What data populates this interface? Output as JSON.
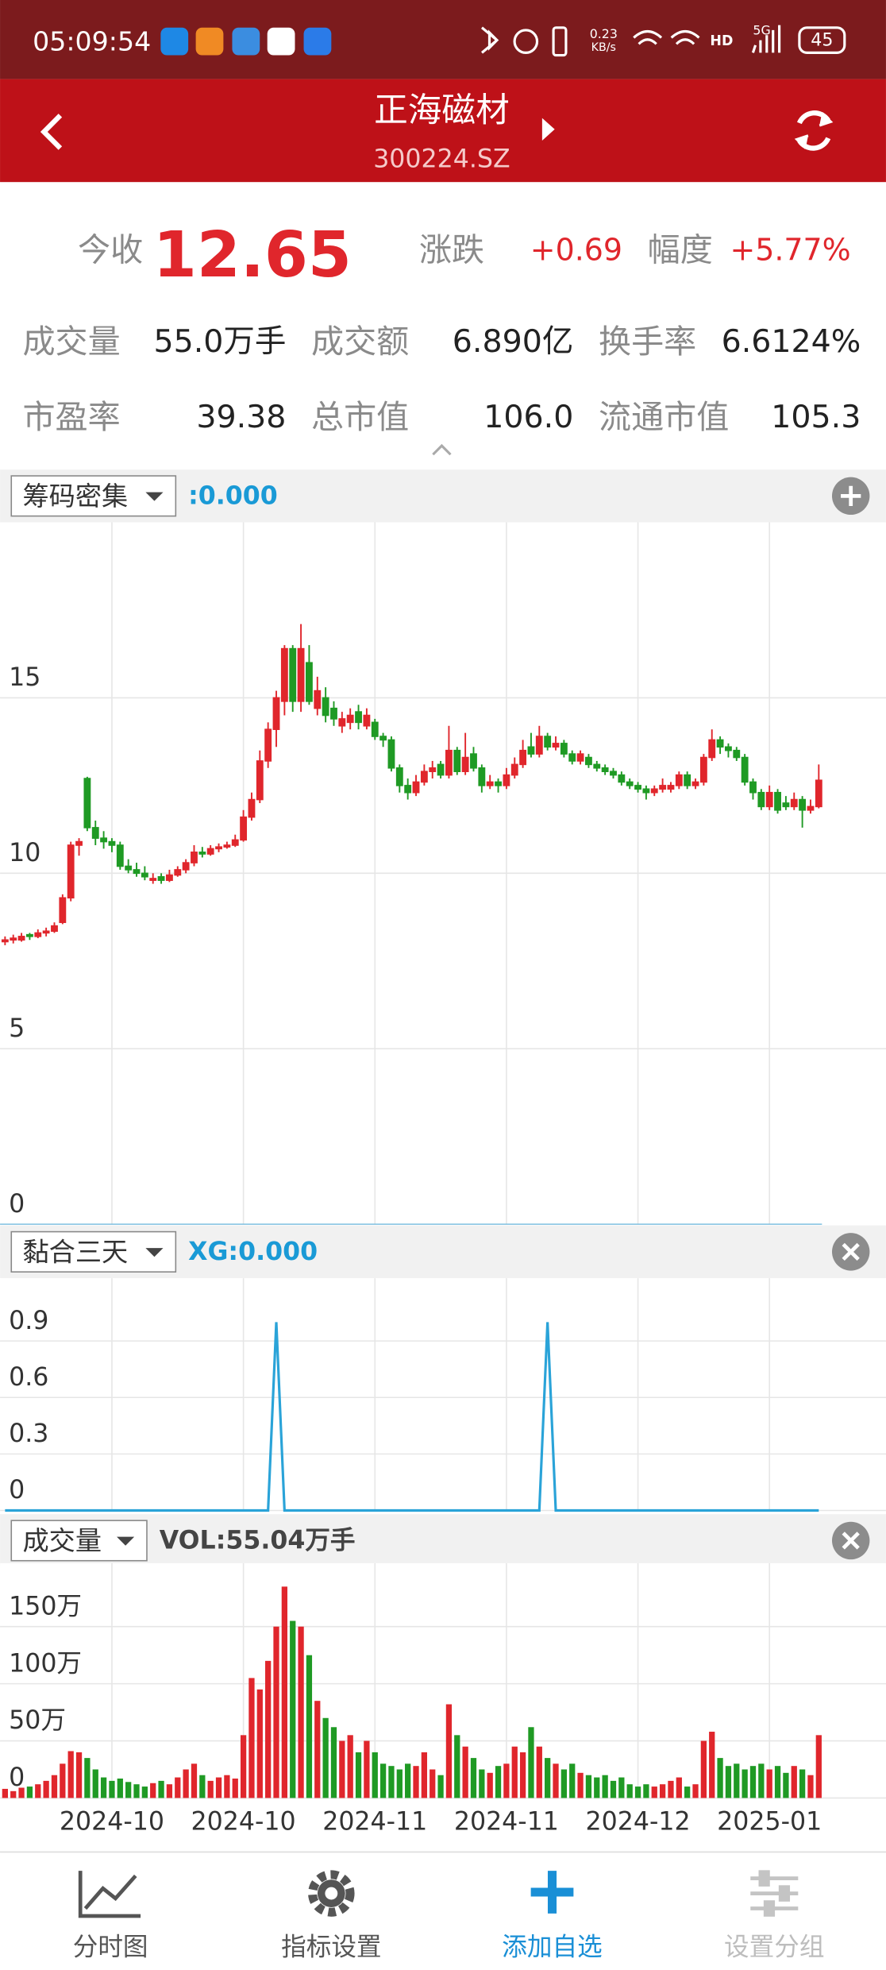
{
  "status_bar": {
    "time": "05:09:54",
    "net_speed": "0.23",
    "net_unit": "KB/s",
    "hd": "HD",
    "signal": "5G",
    "battery": "45"
  },
  "header": {
    "title": "正海磁材",
    "code": "300224.SZ"
  },
  "quote": {
    "close_label": "今收",
    "close": "12.65",
    "change_label": "涨跌",
    "change": "+0.69",
    "pct_label": "幅度",
    "pct": "+5.77%",
    "stats": [
      [
        "成交量",
        "55.0万手"
      ],
      [
        "成交额",
        "6.890亿"
      ],
      [
        "换手率",
        "6.6124%"
      ],
      [
        "市盈率",
        "39.38"
      ],
      [
        "总市值",
        "106.0"
      ],
      [
        "流通市值",
        "105.3"
      ]
    ]
  },
  "panels": [
    {
      "selector": "筹码密集",
      "readout": ":0.000"
    },
    {
      "selector": "黏合三天",
      "readout": "XG:0.000"
    },
    {
      "selector": "成交量",
      "readout": "VOL:55.04万手"
    }
  ],
  "chart_data": [
    {
      "type": "candlestick",
      "ylim": [
        0,
        20
      ],
      "yticks": [
        0,
        5,
        10,
        15
      ],
      "grid": true,
      "up_color": "#e0262c",
      "down_color": "#1f9a24",
      "ohlc": [
        [
          8.05,
          8.2,
          7.95,
          8.1
        ],
        [
          8.1,
          8.25,
          8.0,
          8.15
        ],
        [
          8.1,
          8.3,
          8.05,
          8.2
        ],
        [
          8.25,
          8.3,
          8.1,
          8.2
        ],
        [
          8.2,
          8.4,
          8.15,
          8.3
        ],
        [
          8.3,
          8.45,
          8.2,
          8.35
        ],
        [
          8.35,
          8.6,
          8.3,
          8.5
        ],
        [
          8.6,
          9.4,
          8.55,
          9.3
        ],
        [
          9.3,
          10.9,
          9.2,
          10.8
        ],
        [
          10.8,
          11.0,
          10.5,
          10.9
        ],
        [
          12.7,
          12.75,
          11.2,
          11.3
        ],
        [
          11.3,
          11.5,
          10.8,
          11.0
        ],
        [
          11.0,
          11.2,
          10.7,
          10.9
        ],
        [
          10.9,
          11.0,
          10.6,
          10.8
        ],
        [
          10.8,
          10.9,
          10.1,
          10.2
        ],
        [
          10.2,
          10.4,
          10.0,
          10.1
        ],
        [
          10.1,
          10.3,
          9.9,
          10.0
        ],
        [
          10.0,
          10.2,
          9.8,
          9.9
        ],
        [
          9.8,
          10.0,
          9.7,
          9.85
        ],
        [
          9.9,
          10.0,
          9.7,
          9.8
        ],
        [
          9.8,
          10.1,
          9.75,
          9.95
        ],
        [
          9.95,
          10.2,
          9.9,
          10.1
        ],
        [
          10.1,
          10.4,
          10.0,
          10.3
        ],
        [
          10.3,
          10.8,
          10.2,
          10.6
        ],
        [
          10.6,
          10.75,
          10.45,
          10.55
        ],
        [
          10.55,
          10.8,
          10.5,
          10.7
        ],
        [
          10.7,
          10.85,
          10.6,
          10.75
        ],
        [
          10.75,
          10.9,
          10.7,
          10.8
        ],
        [
          10.8,
          11.1,
          10.75,
          10.95
        ],
        [
          10.95,
          11.8,
          10.9,
          11.6
        ],
        [
          11.6,
          12.3,
          11.5,
          12.1
        ],
        [
          12.1,
          13.5,
          12.0,
          13.2
        ],
        [
          13.2,
          14.3,
          13.0,
          14.1
        ],
        [
          14.1,
          15.2,
          13.6,
          15.0
        ],
        [
          14.9,
          16.5,
          14.5,
          16.4
        ],
        [
          16.4,
          16.5,
          14.6,
          14.9
        ],
        [
          14.9,
          17.1,
          14.6,
          16.4
        ],
        [
          16.0,
          16.5,
          14.8,
          14.9
        ],
        [
          14.7,
          15.6,
          14.5,
          15.2
        ],
        [
          15.0,
          15.3,
          14.3,
          14.5
        ],
        [
          14.7,
          14.9,
          14.2,
          14.4
        ],
        [
          14.2,
          14.6,
          14.0,
          14.4
        ],
        [
          14.3,
          14.7,
          14.1,
          14.5
        ],
        [
          14.6,
          14.8,
          14.1,
          14.3
        ],
        [
          14.2,
          14.7,
          14.1,
          14.5
        ],
        [
          14.3,
          14.4,
          13.8,
          13.9
        ],
        [
          13.9,
          14.0,
          13.6,
          13.8
        ],
        [
          13.8,
          13.9,
          12.9,
          13.0
        ],
        [
          13.0,
          13.1,
          12.3,
          12.5
        ],
        [
          12.5,
          12.7,
          12.1,
          12.3
        ],
        [
          12.3,
          12.8,
          12.2,
          12.6
        ],
        [
          12.6,
          13.1,
          12.5,
          12.9
        ],
        [
          12.9,
          13.2,
          12.7,
          13.0
        ],
        [
          13.1,
          13.2,
          12.7,
          12.8
        ],
        [
          12.8,
          14.2,
          12.7,
          13.5
        ],
        [
          13.5,
          13.6,
          12.8,
          12.9
        ],
        [
          12.9,
          14.0,
          12.8,
          13.3
        ],
        [
          13.4,
          13.6,
          12.9,
          13.0
        ],
        [
          13.0,
          13.1,
          12.3,
          12.5
        ],
        [
          12.5,
          12.8,
          12.4,
          12.6
        ],
        [
          12.6,
          12.7,
          12.3,
          12.5
        ],
        [
          12.5,
          13.0,
          12.4,
          12.8
        ],
        [
          12.8,
          13.3,
          12.7,
          13.1
        ],
        [
          13.1,
          13.8,
          13.0,
          13.5
        ],
        [
          13.6,
          14.0,
          13.3,
          13.4
        ],
        [
          13.4,
          14.2,
          13.3,
          13.9
        ],
        [
          13.9,
          14.0,
          13.5,
          13.6
        ],
        [
          13.6,
          13.9,
          13.5,
          13.7
        ],
        [
          13.7,
          13.8,
          13.3,
          13.4
        ],
        [
          13.4,
          13.5,
          13.1,
          13.2
        ],
        [
          13.2,
          13.5,
          13.1,
          13.4
        ],
        [
          13.3,
          13.4,
          13.0,
          13.1
        ],
        [
          13.1,
          13.2,
          12.9,
          13.0
        ],
        [
          13.0,
          13.1,
          12.8,
          12.9
        ],
        [
          12.9,
          13.0,
          12.7,
          12.8
        ],
        [
          12.8,
          12.9,
          12.5,
          12.6
        ],
        [
          12.6,
          12.7,
          12.4,
          12.5
        ],
        [
          12.5,
          12.6,
          12.3,
          12.4
        ],
        [
          12.4,
          12.5,
          12.1,
          12.3
        ],
        [
          12.3,
          12.5,
          12.2,
          12.4
        ],
        [
          12.4,
          12.7,
          12.3,
          12.5
        ],
        [
          12.4,
          12.6,
          12.3,
          12.5
        ],
        [
          12.5,
          12.9,
          12.4,
          12.8
        ],
        [
          12.8,
          12.9,
          12.4,
          12.5
        ],
        [
          12.5,
          12.7,
          12.4,
          12.6
        ],
        [
          12.6,
          13.4,
          12.5,
          13.3
        ],
        [
          13.3,
          14.1,
          13.2,
          13.8
        ],
        [
          13.8,
          13.9,
          13.4,
          13.6
        ],
        [
          13.6,
          13.7,
          13.3,
          13.5
        ],
        [
          13.5,
          13.6,
          13.2,
          13.3
        ],
        [
          13.3,
          13.4,
          12.5,
          12.6
        ],
        [
          12.6,
          12.7,
          12.1,
          12.3
        ],
        [
          12.3,
          12.4,
          11.8,
          11.9
        ],
        [
          11.9,
          12.5,
          11.8,
          12.3
        ],
        [
          12.3,
          12.4,
          11.7,
          11.8
        ],
        [
          12.0,
          12.2,
          11.8,
          11.9
        ],
        [
          11.9,
          12.3,
          11.8,
          12.1
        ],
        [
          12.1,
          12.2,
          11.3,
          11.8
        ],
        [
          11.8,
          12.1,
          11.7,
          11.9
        ],
        [
          11.9,
          13.1,
          11.85,
          12.65
        ]
      ]
    },
    {
      "type": "line",
      "ylim": [
        0,
        1.2
      ],
      "yticks": [
        0,
        0.3,
        0.6,
        0.9
      ],
      "grid": true,
      "color": "#2aa3d8",
      "values": [
        0,
        0,
        0,
        0,
        0,
        0,
        0,
        0,
        0,
        0,
        0,
        0,
        0,
        0,
        0,
        0,
        0,
        0,
        0,
        0,
        0,
        0,
        0,
        0,
        0,
        0,
        0,
        0,
        0,
        0,
        0,
        0,
        0,
        1,
        0,
        0,
        0,
        0,
        0,
        0,
        0,
        0,
        0,
        0,
        0,
        0,
        0,
        0,
        0,
        0,
        0,
        0,
        0,
        0,
        0,
        0,
        0,
        0,
        0,
        0,
        0,
        0,
        0,
        0,
        0,
        0,
        1,
        0,
        0,
        0,
        0,
        0,
        0,
        0,
        0,
        0,
        0,
        0,
        0,
        0,
        0,
        0,
        0,
        0,
        0,
        0,
        0,
        0,
        0,
        0,
        0,
        0,
        0,
        0,
        0,
        0,
        0,
        0,
        0,
        0
      ]
    },
    {
      "type": "bar",
      "ylim": [
        0,
        200
      ],
      "yticks": [
        0,
        {
          "value": 50,
          "label": "50万"
        },
        {
          "value": 100,
          "label": "100万"
        },
        {
          "value": 150,
          "label": "150万"
        }
      ],
      "grid": true,
      "up_color": "#e0262c",
      "down_color": "#1f9a24",
      "categories": [
        null,
        null,
        null,
        null,
        null,
        null,
        null,
        null,
        null,
        null,
        null,
        null,
        null,
        "2024-10",
        null,
        null,
        null,
        null,
        null,
        null,
        null,
        null,
        null,
        null,
        null,
        null,
        null,
        null,
        null,
        "2024-10",
        null,
        null,
        null,
        null,
        null,
        null,
        null,
        null,
        null,
        null,
        null,
        null,
        null,
        null,
        null,
        "2024-11",
        null,
        null,
        null,
        null,
        null,
        null,
        null,
        null,
        null,
        null,
        null,
        null,
        null,
        null,
        null,
        "2024-11",
        null,
        null,
        null,
        null,
        null,
        null,
        null,
        null,
        null,
        null,
        null,
        null,
        null,
        null,
        null,
        "2024-12",
        null,
        null,
        null,
        null,
        null,
        null,
        null,
        null,
        null,
        null,
        null,
        null,
        null,
        null,
        null,
        "2025-01",
        null,
        null,
        null,
        null,
        null,
        null
      ],
      "values": [
        8,
        6,
        9,
        10,
        12,
        15,
        20,
        30,
        41,
        40,
        35,
        25,
        18,
        15,
        17,
        14,
        12,
        10,
        13,
        15,
        12,
        18,
        25,
        30,
        20,
        15,
        18,
        20,
        17,
        55,
        105,
        95,
        120,
        150,
        185,
        155,
        150,
        125,
        85,
        70,
        62,
        50,
        55,
        40,
        50,
        40,
        30,
        28,
        25,
        30,
        28,
        40,
        25,
        20,
        82,
        55,
        45,
        35,
        25,
        22,
        28,
        30,
        45,
        40,
        62,
        45,
        35,
        30,
        25,
        30,
        22,
        20,
        18,
        20,
        15,
        18,
        12,
        10,
        12,
        10,
        12,
        15,
        18,
        10,
        12,
        50,
        58,
        35,
        28,
        30,
        25,
        28,
        30,
        25,
        28,
        22,
        28,
        25,
        20,
        55
      ]
    }
  ],
  "nav": [
    "分时图",
    "指标设置",
    "添加自选",
    "设置分组"
  ]
}
